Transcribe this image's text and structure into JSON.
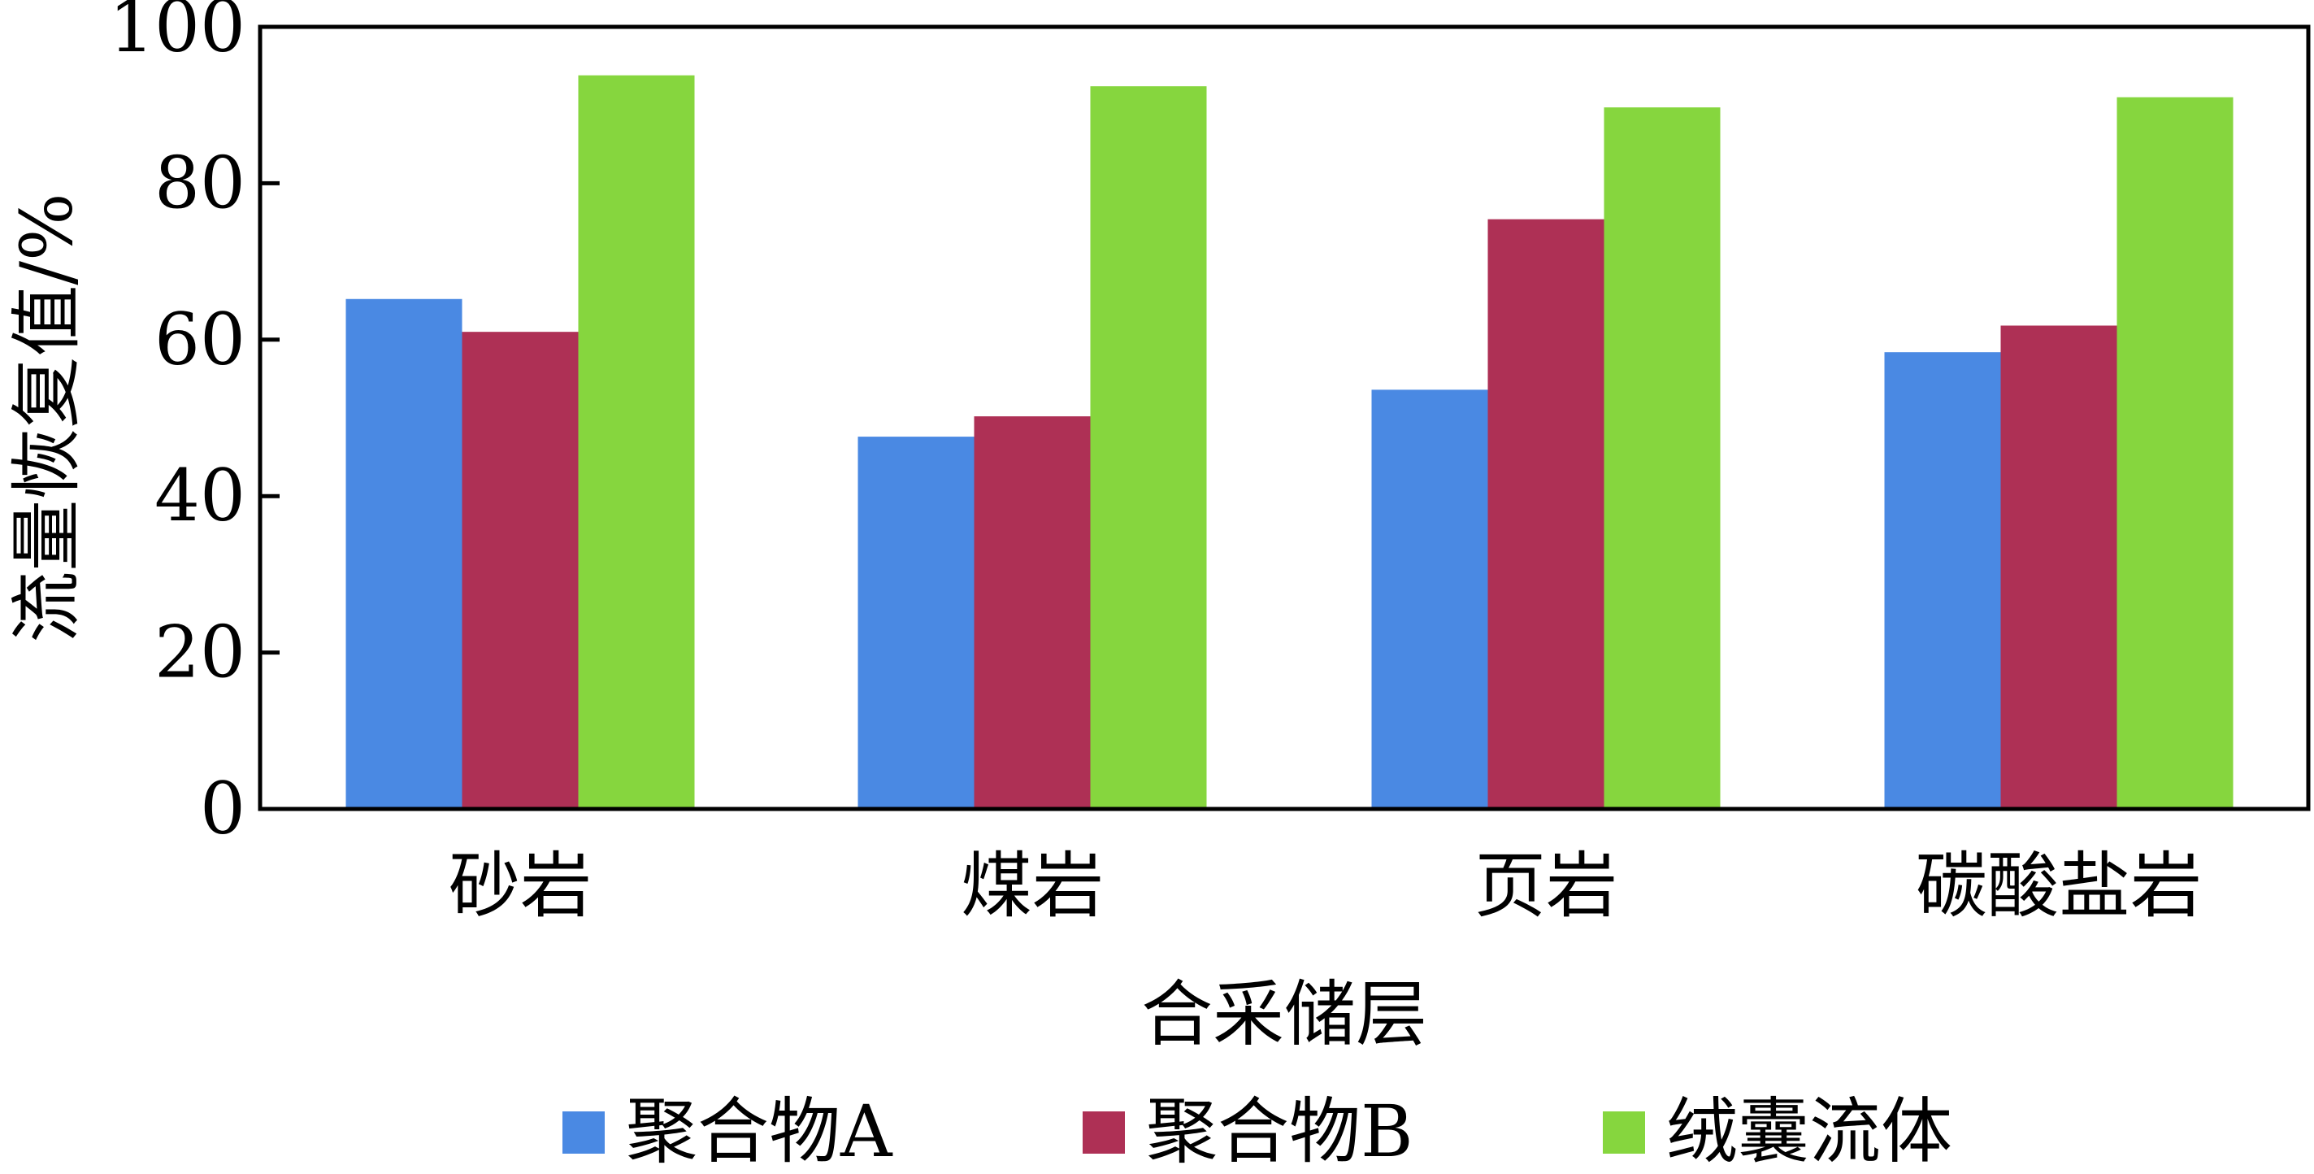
{
  "chart_data": {
    "type": "bar",
    "categories": [
      "砂岩",
      "煤岩",
      "页岩",
      "碳酸盐岩"
    ],
    "series": [
      {
        "name": "聚合物A",
        "color": "#4a89e3",
        "values": [
          65.2,
          47.6,
          53.6,
          58.4
        ]
      },
      {
        "name": "聚合物B",
        "color": "#ae3055",
        "values": [
          61.0,
          50.2,
          75.4,
          61.8
        ]
      },
      {
        "name": "绒囊流体",
        "color": "#86d63e",
        "values": [
          93.8,
          92.4,
          89.7,
          91.0
        ]
      }
    ],
    "xlabel": "合采储层",
    "ylabel": "流量恢复值/%",
    "ylim": [
      0,
      100
    ],
    "yticks": [
      0,
      20,
      40,
      60,
      80,
      100
    ],
    "grid": false,
    "legend_position": "bottom"
  }
}
